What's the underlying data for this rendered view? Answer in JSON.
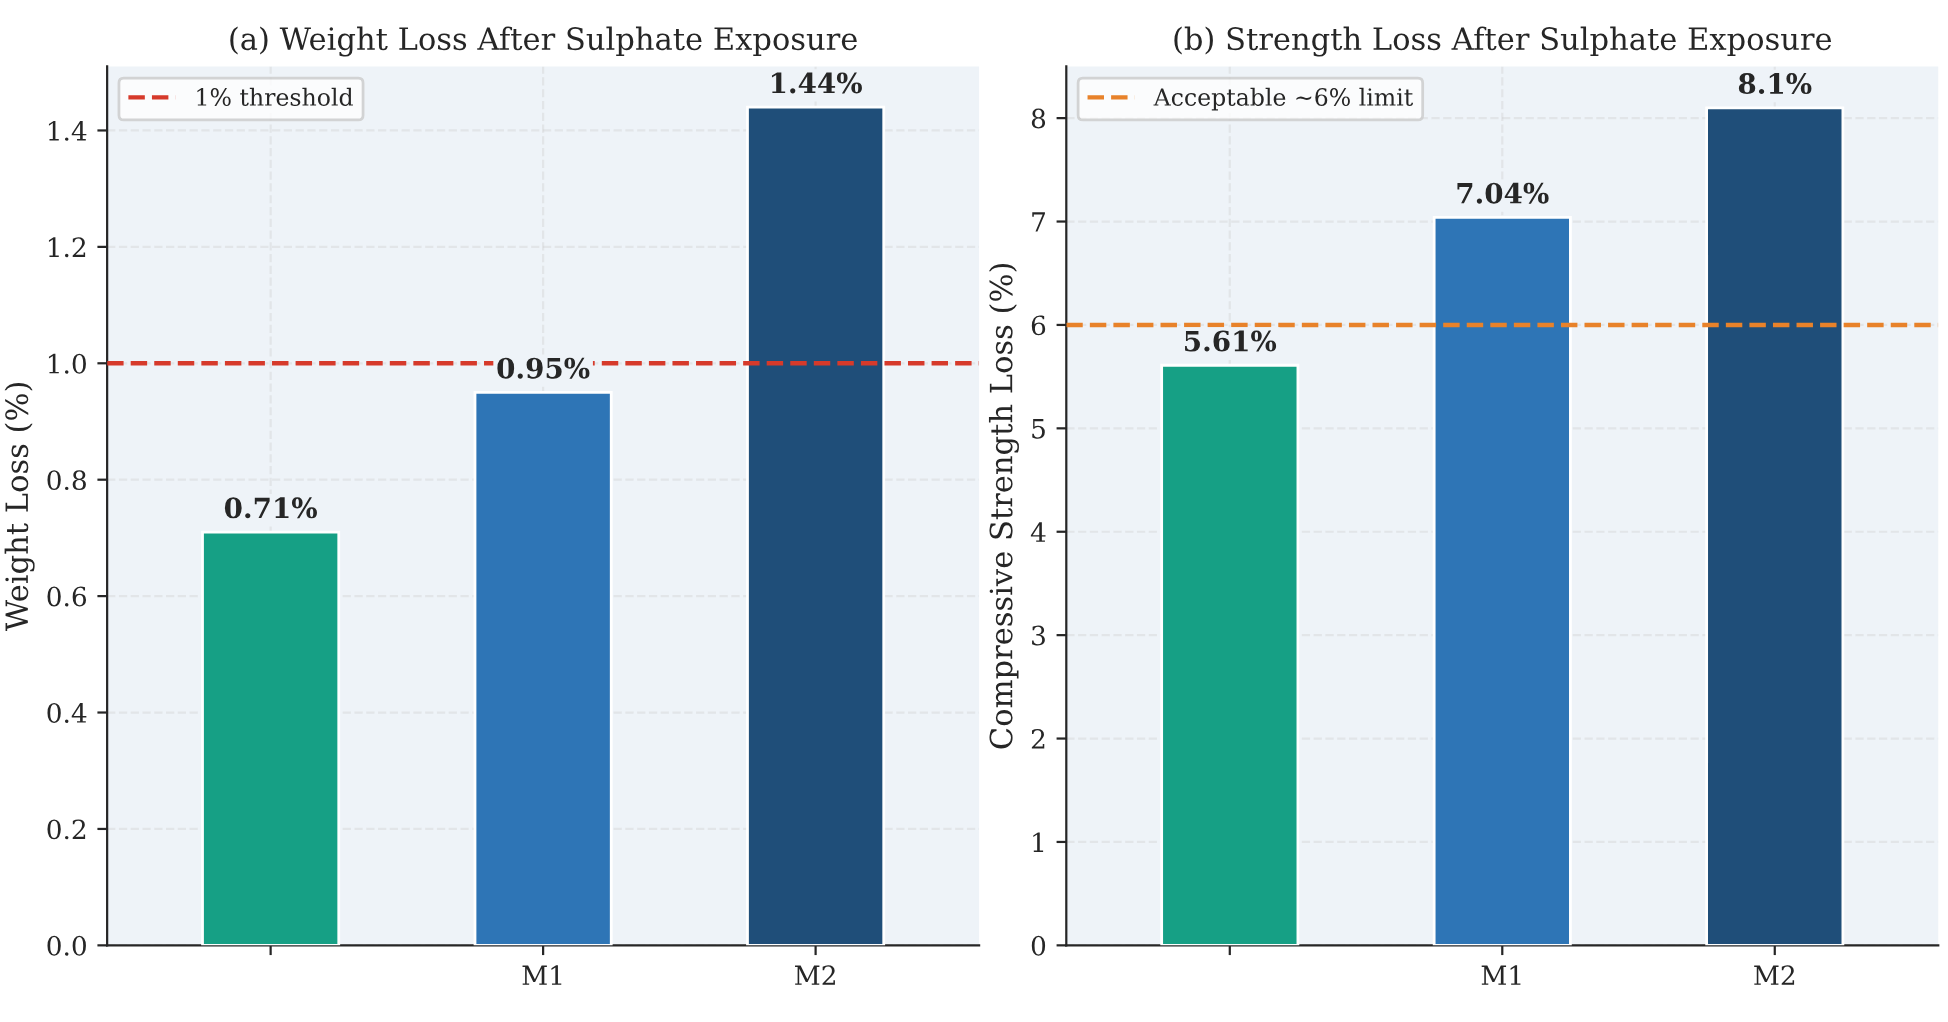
{
  "chart_data": [
    {
      "type": "bar",
      "title": "(a) Weight Loss After Sulphate Exposure",
      "ylabel": "Weight Loss (%)",
      "categories": [
        null,
        "M1",
        "M2"
      ],
      "values": [
        0.71,
        0.95,
        1.44
      ],
      "colors": [
        "#16a085",
        "#2e75b6",
        "#1f4e79"
      ],
      "value_labels": [
        "0.71%",
        "0.95%",
        "1.44%"
      ],
      "ylim": [
        0,
        1.51
      ],
      "yticks": [
        {
          "value": 0,
          "label": "0.0"
        },
        0.2,
        0.4,
        0.6,
        0.8,
        {
          "value": 1,
          "label": "1.0"
        },
        1.2,
        1.4
      ],
      "ref_lines": [
        {
          "axis": "y",
          "value": 1,
          "label": "1% threshold",
          "color": "#d63a2b",
          "line_style": "dashed"
        }
      ],
      "grid": true,
      "legend": "top left"
    },
    {
      "type": "bar",
      "title": "(b) Strength Loss After Sulphate Exposure",
      "ylabel": "Compressive Strength Loss (%)",
      "categories": [
        null,
        "M1",
        "M2"
      ],
      "values": [
        5.61,
        7.04,
        8.1
      ],
      "colors": [
        "#16a085",
        "#2e75b6",
        "#1f4e79"
      ],
      "value_labels": [
        "5.61%",
        "7.04%",
        "8.1%"
      ],
      "ylim": [
        0,
        8.5
      ],
      "yticks": [
        0,
        1,
        2,
        3,
        4,
        5,
        6,
        7,
        8
      ],
      "ref_lines": [
        {
          "axis": "y",
          "value": 6,
          "label": "Acceptable ~6% limit",
          "color": "#e8822a",
          "line_style": "dashed"
        }
      ],
      "grid": true,
      "legend": "top left"
    }
  ]
}
